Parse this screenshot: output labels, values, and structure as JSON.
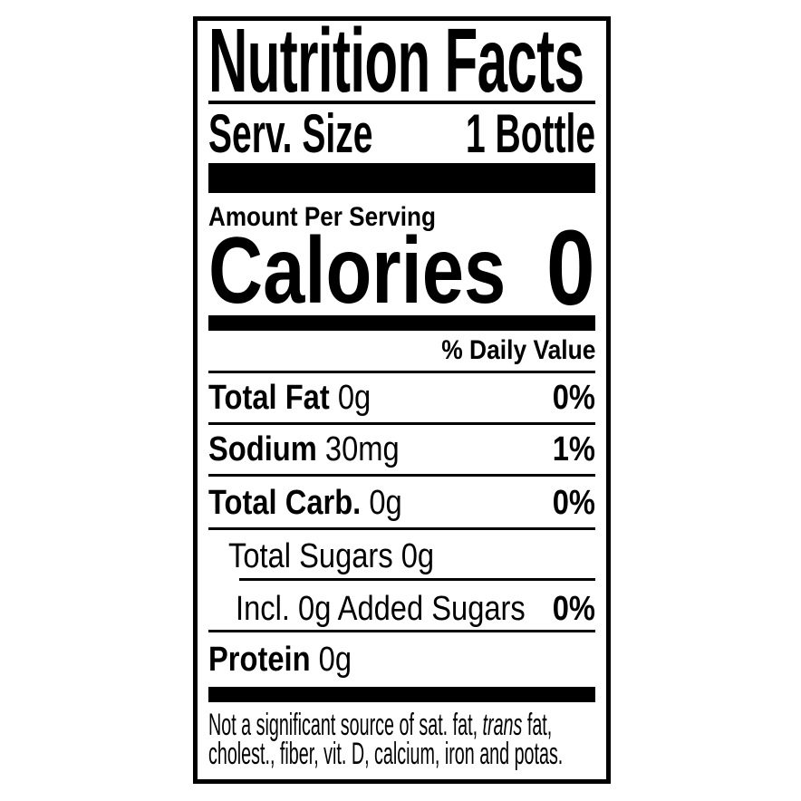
{
  "colors": {
    "ink": "#000000",
    "paper": "#ffffff"
  },
  "label": {
    "title": "Nutrition Facts",
    "serving": {
      "label": "Serv. Size",
      "value": "1 Bottle"
    },
    "amount_per_serving": "Amount Per Serving",
    "calories": {
      "label": "Calories",
      "value": "0"
    },
    "daily_value_header": "% Daily Value",
    "rows": {
      "total_fat": {
        "name": "Total Fat",
        "amount": "0g",
        "dv": "0%"
      },
      "sodium": {
        "name": "Sodium",
        "amount": "30mg",
        "dv": "1%"
      },
      "total_carb": {
        "name": "Total Carb.",
        "amount": "0g",
        "dv": "0%"
      },
      "total_sugars": {
        "text": "Total Sugars 0g"
      },
      "added_sugars": {
        "text": "Incl. 0g Added Sugars",
        "dv": "0%"
      },
      "protein": {
        "name": "Protein",
        "amount": "0g"
      }
    },
    "footnote": {
      "line1_pre": "Not a significant source of sat. fat, ",
      "line1_italic": "trans",
      "line1_post": " fat,",
      "line2": "cholest., fiber, vit. D, calcium, iron and potas."
    }
  }
}
